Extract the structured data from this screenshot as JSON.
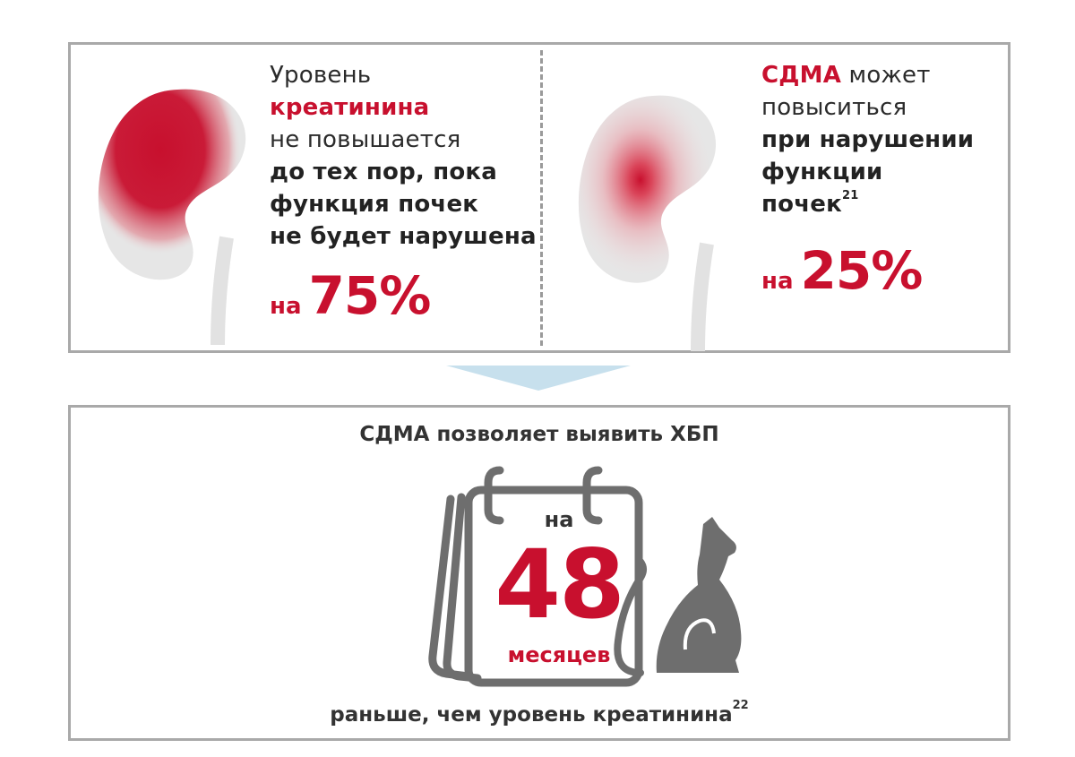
{
  "colors": {
    "accent": "#c8102e",
    "border": "#a9a9a9",
    "arrow": "#c7e0ed",
    "icon_gray": "#6e6e6e"
  },
  "left_card": {
    "line1": "Уровень",
    "line2": "креатинина",
    "line3": "не повышается",
    "line4": "до тех пор, пока",
    "line5": "функция почек",
    "line6": "не будет нарушена",
    "pct_prefix": "на",
    "pct_value": "75%",
    "icon": "kidney-icon"
  },
  "right_card": {
    "line1_red": "СДМА",
    "line1_rest": " может",
    "line2": "повыситься",
    "line3": "при нарушении",
    "line4": "функции",
    "line5": "почек",
    "line5_note": "21",
    "pct_prefix": "на",
    "pct_value": "25%",
    "icon": "kidney-icon"
  },
  "bottom": {
    "headline": "СДМА позволяет выявить ХБП",
    "calendar_prefix": "на",
    "calendar_number": "48",
    "calendar_unit": "месяцев",
    "footer": "раньше, чем уровень креатинина",
    "footer_note": "22",
    "icons": [
      "calendar-icon",
      "cat-icon"
    ]
  }
}
